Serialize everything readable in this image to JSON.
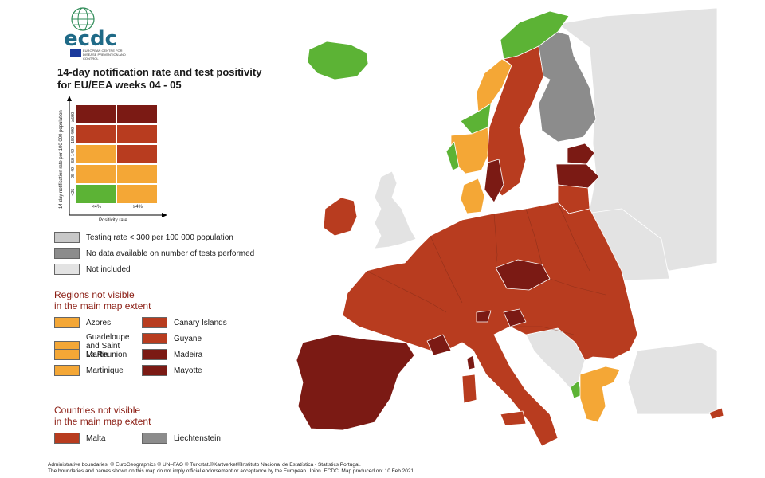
{
  "colors": {
    "green": "#5cb335",
    "orange": "#f4a736",
    "red": "#b83c1f",
    "dark_red": "#7b1a14",
    "grey_light": "#c8c8c8",
    "grey_dark": "#8c8c8c",
    "not_included": "#e3e3e3",
    "sea": "#ffffff"
  },
  "header": {
    "logo_text": "ecdc",
    "agency_name": "EUROPEAN CENTRE FOR DISEASE PREVENTION AND CONTROL",
    "title_line1": "14-day notification rate and test positivity",
    "title_line2": "for EU/EEA weeks 04 - 05"
  },
  "matrix": {
    "y_axis_label": "14-day notification rate per 100 000 population",
    "x_axis_label": "Positivity rate",
    "x_ticks": [
      "<4%",
      "≥4%"
    ],
    "y_ticks": [
      "≥500",
      "150-499",
      "50-149",
      "25-49",
      "<25"
    ],
    "cells": [
      [
        "dark_red",
        "dark_red"
      ],
      [
        "red",
        "red"
      ],
      [
        "orange",
        "red"
      ],
      [
        "orange",
        "orange"
      ],
      [
        "green",
        "orange"
      ]
    ]
  },
  "legend": {
    "testing_rate": "Testing rate < 300 per 100 000 population",
    "no_data": "No data available on number of tests performed",
    "not_included": "Not included"
  },
  "regions": {
    "heading_line1": "Regions not visible",
    "heading_line2": "in the main map extent",
    "left": [
      {
        "label": "Azores",
        "color": "orange"
      },
      {
        "label": "Guadeloupe and Saint Martin",
        "color": "orange"
      },
      {
        "label": "La Reunion",
        "color": "orange"
      },
      {
        "label": "Martinique",
        "color": "orange"
      }
    ],
    "right": [
      {
        "label": "Canary Islands",
        "color": "red"
      },
      {
        "label": "Guyane",
        "color": "red"
      },
      {
        "label": "Madeira",
        "color": "dark_red"
      },
      {
        "label": "Mayotte",
        "color": "dark_red"
      }
    ]
  },
  "countries": {
    "heading_line1": "Countries not visible",
    "heading_line2": "in the main map extent",
    "items": [
      {
        "label": "Malta",
        "color": "red"
      },
      {
        "label": "Liechtenstein",
        "color": "grey_dark"
      }
    ]
  },
  "footer": {
    "line1": "Administrative boundaries: © EuroGeographics © UN–FAO © Turkstat.©Kartverket©Instituto Nacional de Estatística - Statistics Portugal.",
    "line2": "The boundaries and names shown on this map do not imply official endorsement or acceptance by the European Union. ECDC. Map produced on: 10 Feb 2021"
  }
}
